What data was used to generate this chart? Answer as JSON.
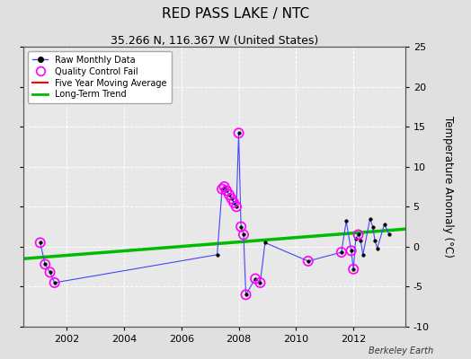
{
  "title": "RED PASS LAKE / NTC",
  "subtitle": "35.266 N, 116.367 W (United States)",
  "ylabel": "Temperature Anomaly (°C)",
  "credit": "Berkeley Earth",
  "xlim": [
    2000.5,
    2013.8
  ],
  "ylim": [
    -10,
    25
  ],
  "yticks": [
    -10,
    -5,
    0,
    5,
    10,
    15,
    20,
    25
  ],
  "xticks": [
    2002,
    2004,
    2006,
    2008,
    2010,
    2012
  ],
  "background_color": "#e0e0e0",
  "plot_bg_color": "#e8e8e8",
  "grid_color": "#ffffff",
  "raw_x": [
    2001.08,
    2001.25,
    2001.42,
    2001.58,
    2007.25,
    2007.42,
    2007.5,
    2007.58,
    2007.67,
    2007.75,
    2007.83,
    2007.92,
    2008.0,
    2008.08,
    2008.17,
    2008.25,
    2008.58,
    2008.75,
    2008.92,
    2010.42,
    2011.58,
    2011.75,
    2011.92,
    2012.0,
    2012.08,
    2012.17,
    2012.25,
    2012.33,
    2012.58,
    2012.67,
    2012.75,
    2012.83,
    2013.08,
    2013.25
  ],
  "raw_y": [
    0.5,
    -2.2,
    -3.2,
    -4.5,
    -1.0,
    7.2,
    7.5,
    7.0,
    6.5,
    6.0,
    5.5,
    5.0,
    14.2,
    2.5,
    1.5,
    -6.0,
    -4.0,
    -4.5,
    0.5,
    -1.8,
    -0.7,
    3.2,
    -0.5,
    -2.8,
    1.0,
    1.5,
    0.8,
    -1.0,
    3.5,
    2.5,
    0.8,
    -0.2,
    2.8,
    1.5
  ],
  "qc_fail_x": [
    2001.08,
    2001.25,
    2001.42,
    2001.58,
    2007.42,
    2007.5,
    2007.58,
    2007.67,
    2007.75,
    2007.83,
    2007.92,
    2008.0,
    2008.08,
    2008.17,
    2008.25,
    2008.58,
    2008.75,
    2010.42,
    2011.58,
    2011.92,
    2012.0,
    2012.17
  ],
  "qc_fail_y": [
    0.5,
    -2.2,
    -3.2,
    -4.5,
    7.2,
    7.5,
    7.0,
    6.5,
    6.0,
    5.5,
    5.0,
    14.2,
    2.5,
    1.5,
    -6.0,
    -4.0,
    -4.5,
    -1.8,
    -0.7,
    -0.5,
    -2.8,
    1.5
  ],
  "trend_x": [
    2000.5,
    2013.8
  ],
  "trend_y": [
    -1.5,
    2.2
  ],
  "raw_color": "#4444ff",
  "raw_marker_color": "#000000",
  "qc_color": "#ff00ff",
  "trend_color": "#00bb00",
  "five_yr_color": "#ff0000",
  "title_fontsize": 11,
  "subtitle_fontsize": 9,
  "tick_fontsize": 8
}
